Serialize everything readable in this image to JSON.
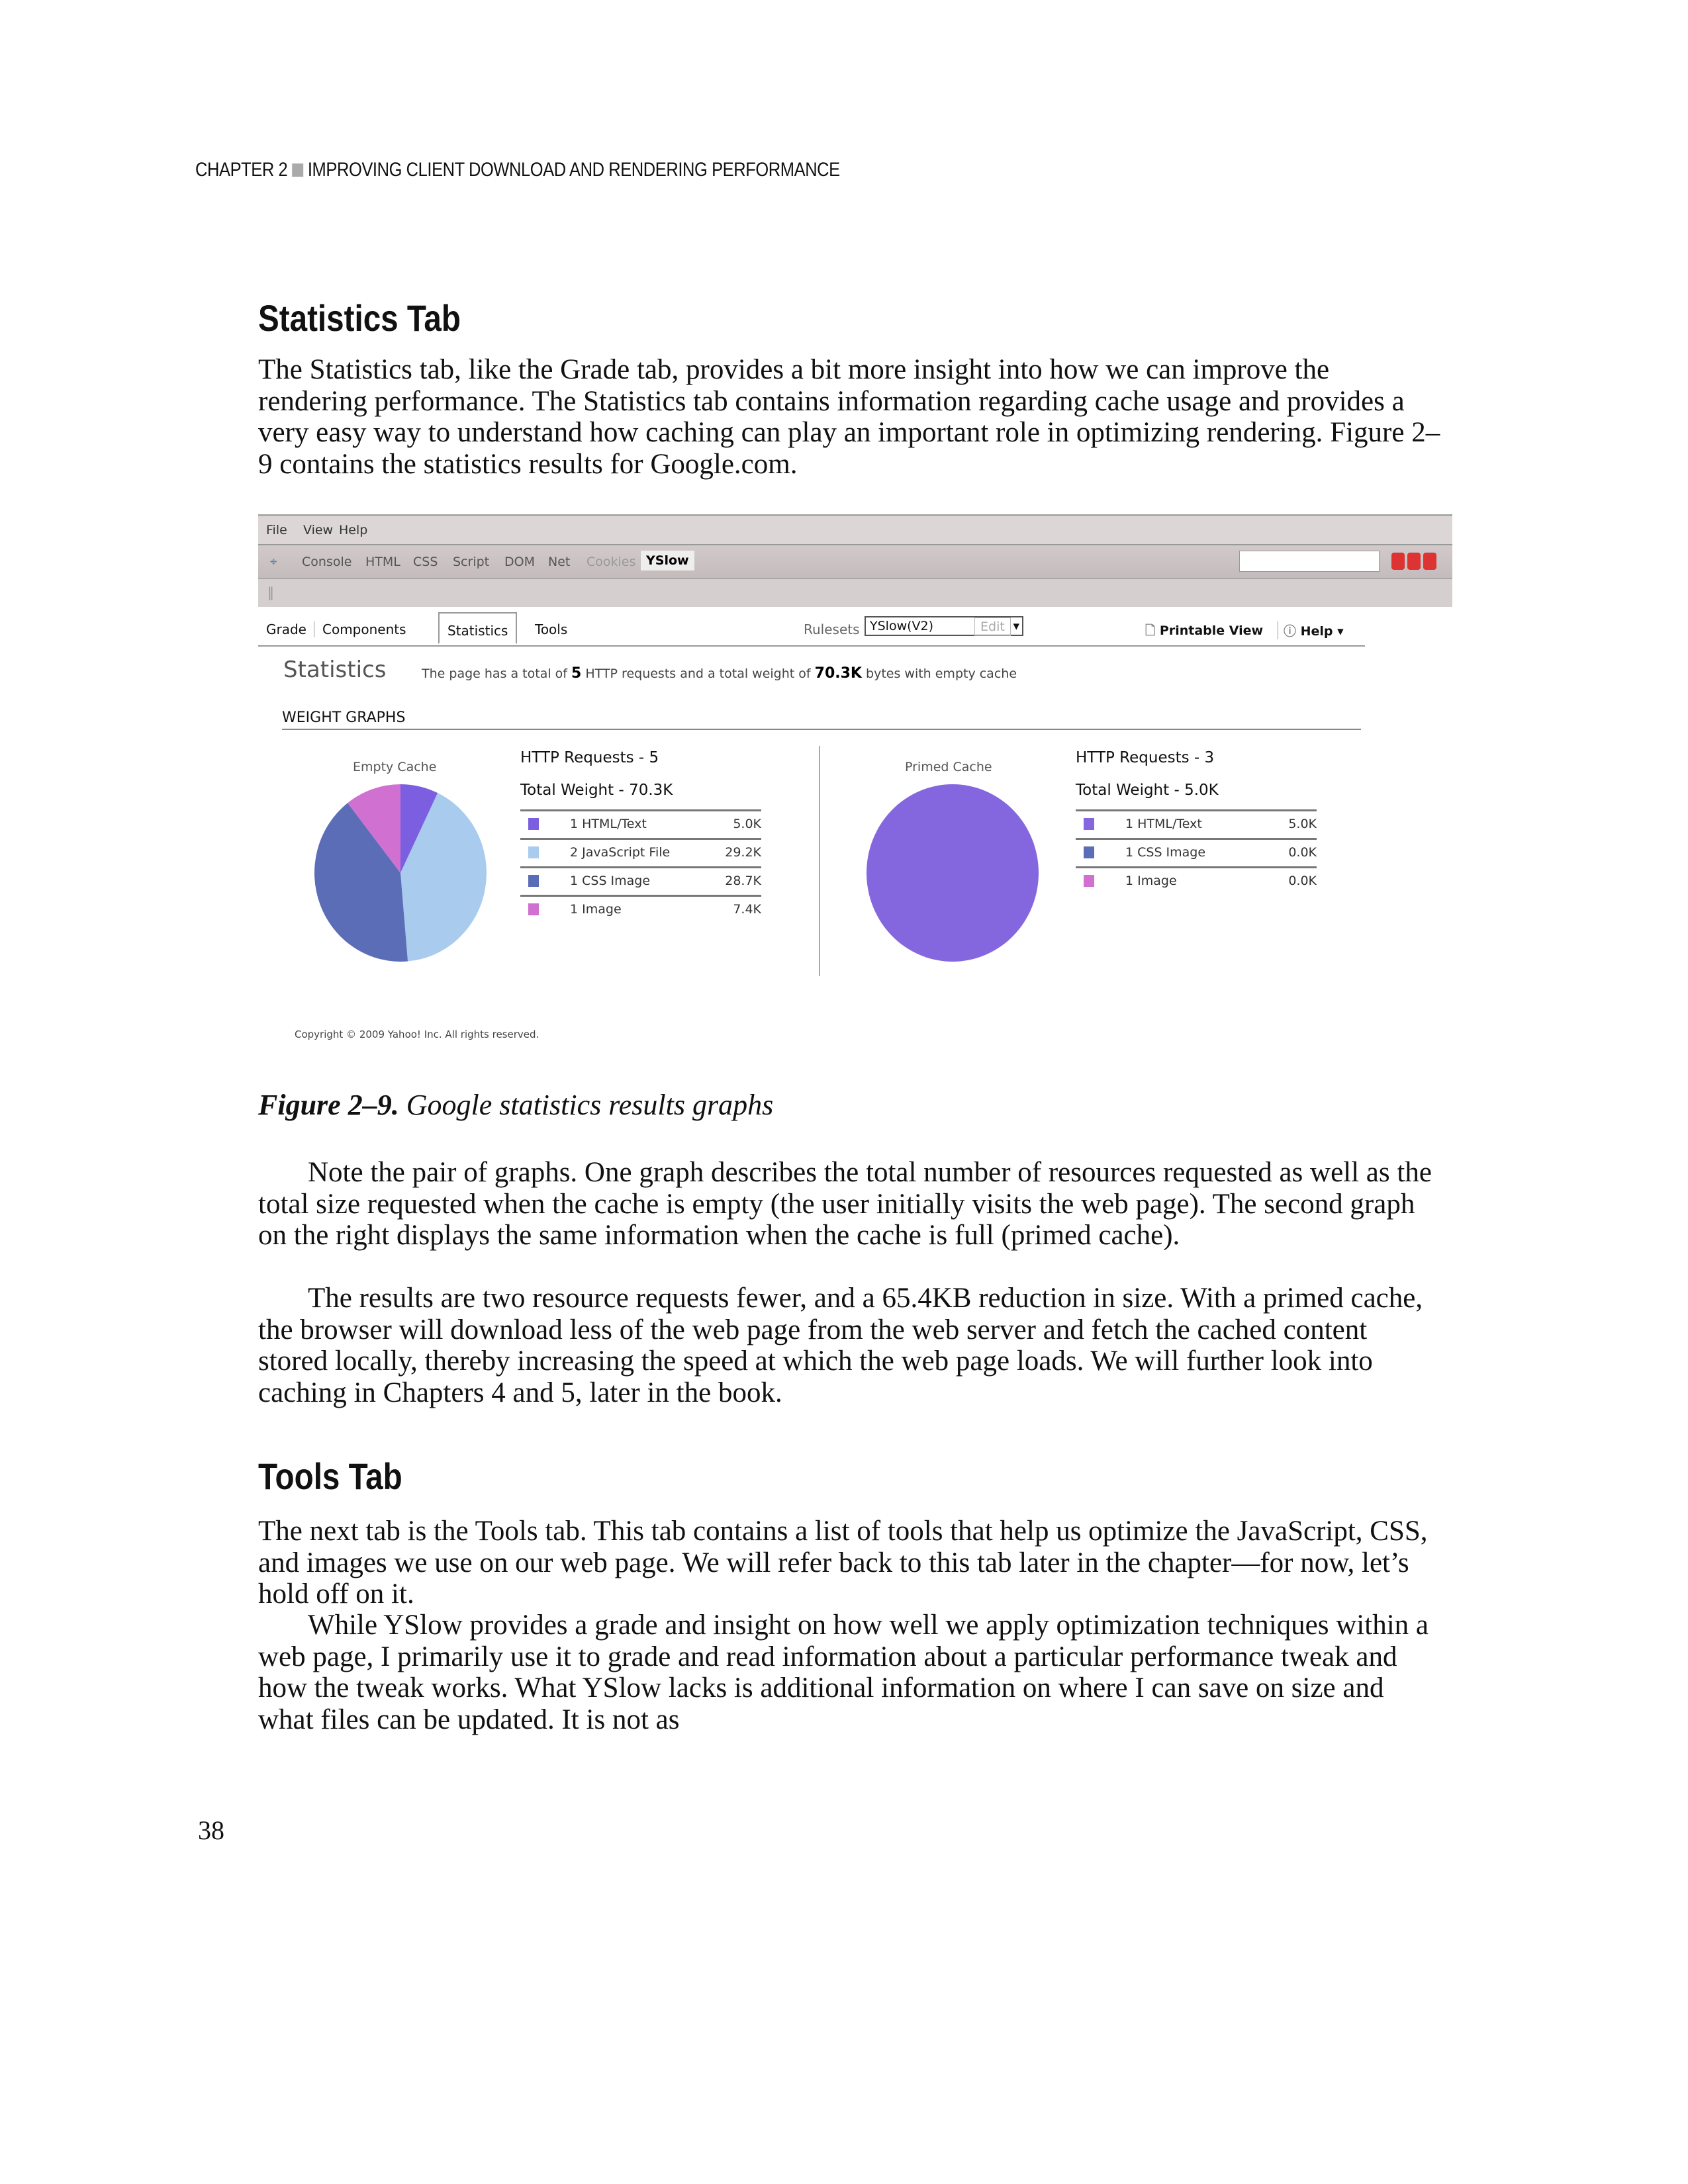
{
  "running_head": {
    "chapter": "CHAPTER 2",
    "title": "IMPROVING CLIENT DOWNLOAD AND RENDERING PERFORMANCE"
  },
  "section1": {
    "heading": "Statistics Tab",
    "paragraph": "The Statistics tab, like the Grade tab, provides a bit more insight into how we can improve the rendering performance. The Statistics tab contains information regarding cache usage and provides a very easy way to understand how caching can play an important role in optimizing rendering. Figure 2–9 contains the statistics results for Google.com."
  },
  "figure": {
    "menu": [
      "File",
      "View",
      "Help"
    ],
    "toolbar_tabs": [
      "Console",
      "HTML",
      "CSS",
      "Script",
      "DOM",
      "Net",
      "Cookies",
      "YSlow"
    ],
    "active_toolbar_tab": "YSlow",
    "yslow_tabs": [
      "Grade",
      "Components",
      "Statistics",
      "Tools"
    ],
    "selected_tab": "Statistics",
    "rulesets_label": "Rulesets",
    "ruleset_value": "YSlow(V2)",
    "edit_label": "Edit",
    "printable_view": "Printable View",
    "help": "Help ▾",
    "stats_title": "Statistics",
    "summary_pre": "The page has a total of",
    "summary_requests": "5",
    "summary_mid": "HTTP requests and a total weight of",
    "summary_weight": "70.3K",
    "summary_post": "bytes with empty cache",
    "weight_graphs": "WEIGHT GRAPHS",
    "copyright": "Copyright © 2009 Yahoo! Inc. All rights reserved.",
    "colors": {
      "html": "#7b5fe0",
      "js": "#a8cbee",
      "css": "#5b6db6",
      "image": "#d070d0",
      "primed": "#8466de"
    }
  },
  "chart_data": [
    {
      "type": "pie",
      "title": "Empty Cache",
      "http_requests": "HTTP Requests - 5",
      "total_weight": "Total Weight - 70.3K",
      "slices": [
        {
          "label": "1 HTML/Text",
          "value": 5.0,
          "display": "5.0K",
          "color": "#7b5fe0"
        },
        {
          "label": "2 JavaScript File",
          "value": 29.2,
          "display": "29.2K",
          "color": "#a8cbee"
        },
        {
          "label": "1 CSS Image",
          "value": 28.7,
          "display": "28.7K",
          "color": "#5b6db6"
        },
        {
          "label": "1 Image",
          "value": 7.4,
          "display": "7.4K",
          "color": "#d070d0"
        }
      ]
    },
    {
      "type": "pie",
      "title": "Primed Cache",
      "http_requests": "HTTP Requests - 3",
      "total_weight": "Total Weight - 5.0K",
      "slices": [
        {
          "label": "1 HTML/Text",
          "value": 5.0,
          "display": "5.0K",
          "color": "#8466de"
        },
        {
          "label": "1 CSS Image",
          "value": 0.0,
          "display": "0.0K",
          "color": "#5b6db6"
        },
        {
          "label": "1 Image",
          "value": 0.0,
          "display": "0.0K",
          "color": "#d070d0"
        }
      ]
    }
  ],
  "caption": {
    "label": "Figure 2–9.",
    "text": "Google statistics results graphs"
  },
  "section1_cont": {
    "p1": "Note the pair of graphs. One graph describes the total number of resources requested as well as the total size requested when the cache is empty (the user initially visits the web page). The second graph on the right displays the same information when the cache is full (primed cache).",
    "p2": "The results are two resource requests fewer, and a 65.4KB reduction in size. With a primed cache, the browser will download less of the web page from the web server and fetch the cached content stored locally, thereby increasing the speed at which the web page loads. We will further look into caching in Chapters 4 and 5, later in the book."
  },
  "section2": {
    "heading": "Tools Tab",
    "p1": "The next tab is the Tools tab. This tab contains a list of tools that help us optimize the JavaScript, CSS, and images we use on our web page. We will refer back to this tab later in the chapter—for now, let’s hold off on it.",
    "p2": "While YSlow provides a grade and insight on how well we apply optimization techniques within a web page, I primarily use it to grade and read information about a particular performance tweak and how the tweak works. What YSlow lacks is additional information on where I can save on size and what files can be updated. It is not as"
  },
  "page_number": "38"
}
